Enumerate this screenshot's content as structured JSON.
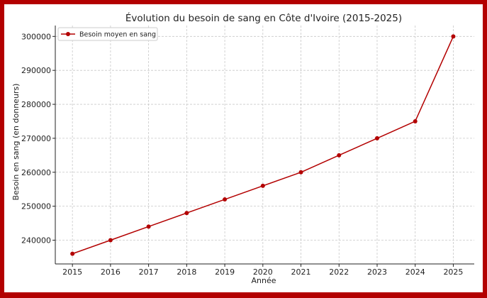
{
  "chart_data": {
    "type": "line",
    "title": "Évolution du besoin de sang en Côte d'Ivoire (2015-2025)",
    "xlabel": "Année",
    "ylabel": "Besoin en sang (en donneurs)",
    "x": [
      2015,
      2016,
      2017,
      2018,
      2019,
      2020,
      2021,
      2022,
      2023,
      2024,
      2025
    ],
    "series": [
      {
        "name": "Besoin moyen en sang",
        "values": [
          236000,
          240000,
          244000,
          248000,
          252000,
          256000,
          260000,
          265000,
          270000,
          275000,
          300000
        ],
        "color": "#b30000",
        "marker": "circle"
      }
    ],
    "yticks": [
      240000,
      250000,
      260000,
      270000,
      280000,
      290000,
      300000
    ],
    "xticks": [
      2015,
      2016,
      2017,
      2018,
      2019,
      2020,
      2021,
      2022,
      2023,
      2024,
      2025
    ],
    "ylim": [
      233000,
      303200
    ],
    "xlim": [
      2014.55,
      2025.55
    ],
    "grid": true,
    "grid_style": "dashed",
    "legend_position": "top-left",
    "frame_color": "#b30000"
  }
}
